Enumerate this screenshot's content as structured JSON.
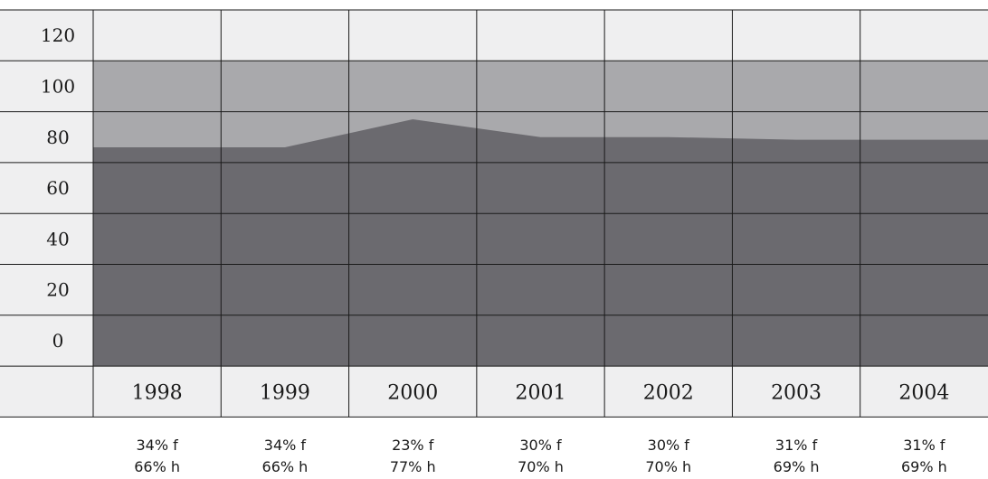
{
  "chart_data": {
    "type": "area",
    "categories": [
      "1998",
      "1999",
      "2000",
      "2001",
      "2002",
      "2003",
      "2004"
    ],
    "ylim": [
      -20,
      120
    ],
    "yticks": [
      120,
      100,
      80,
      60,
      40,
      20,
      0
    ],
    "ytick_labels": [
      "120",
      "100",
      "80",
      "60",
      "40",
      "20",
      "0"
    ],
    "total_level": 100,
    "series": [
      {
        "values": [
          66,
          66,
          77,
          70,
          70,
          69,
          69
        ],
        "color": "#6b6a6f"
      },
      {
        "values": [
          34,
          34,
          23,
          30,
          30,
          31,
          31
        ],
        "color": "#a9a9ac"
      }
    ],
    "annotations": [
      {
        "line1": "34% f",
        "line2": "66% h"
      },
      {
        "line1": "34% f",
        "line2": "66% h"
      },
      {
        "line1": "23% f",
        "line2": "77% h"
      },
      {
        "line1": "30% f",
        "line2": "70% h"
      },
      {
        "line1": "30% f",
        "line2": "70% h"
      },
      {
        "line1": "31% f",
        "line2": "69% h"
      },
      {
        "line1": "31% f",
        "line2": "69% h"
      }
    ],
    "colors": {
      "background": "#efeff0",
      "grid": "#1a1a1a"
    },
    "grid": true
  }
}
